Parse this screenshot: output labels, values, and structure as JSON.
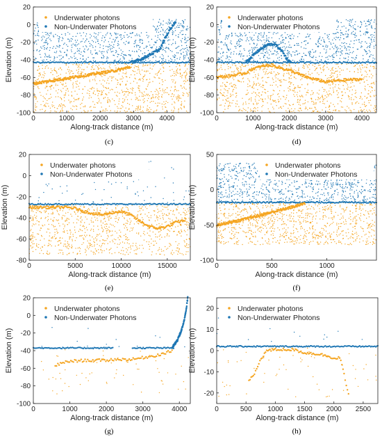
{
  "colors": {
    "underwater": "#f5a623",
    "non_underwater": "#1f77b4",
    "axis": "#222222"
  },
  "chart_data": [
    {
      "panel": "(c)",
      "type": "scatter",
      "xlabel": "Along-track distance (m)",
      "ylabel": "Elevation (m)",
      "xlim": [
        0,
        4700
      ],
      "ylim": [
        -100,
        20
      ],
      "xticks": [
        0,
        1000,
        2000,
        3000,
        4000
      ],
      "yticks": [
        -100,
        -80,
        -60,
        -40,
        -20,
        0,
        20
      ],
      "legend": {
        "position": "top-left",
        "entries": [
          "Underwater photons",
          "Non-Underwater Photons"
        ]
      },
      "surface_level": -43,
      "series": [
        {
          "name": "Underwater photons",
          "noise_band": [
            -100,
            -43
          ],
          "bottom_profile": [
            [
              0,
              -67
            ],
            [
              500,
              -64
            ],
            [
              1000,
              -61
            ],
            [
              1500,
              -58
            ],
            [
              2000,
              -55
            ],
            [
              2500,
              -52
            ],
            [
              2800,
              -49
            ],
            [
              2900,
              -48
            ]
          ]
        },
        {
          "name": "Non-Underwater Photons",
          "noise_band": [
            -43,
            6
          ],
          "bottom_profile": [
            [
              2900,
              -43
            ],
            [
              3200,
              -40
            ],
            [
              3500,
              -34
            ],
            [
              3800,
              -28
            ],
            [
              3950,
              -15
            ],
            [
              4100,
              -5
            ],
            [
              4250,
              3
            ]
          ]
        }
      ]
    },
    {
      "panel": "(d)",
      "type": "scatter",
      "xlabel": "Along-track distance (m)",
      "ylabel": "Elevation (m)",
      "xlim": [
        0,
        4400
      ],
      "ylim": [
        -100,
        20
      ],
      "xticks": [
        0,
        1000,
        2000,
        3000,
        4000
      ],
      "yticks": [
        -100,
        -80,
        -60,
        -40,
        -20,
        0,
        20
      ],
      "legend": {
        "position": "top-left",
        "entries": [
          "Underwater photons",
          "Non-Underwater Photons"
        ]
      },
      "surface_level": -43,
      "series": [
        {
          "name": "Underwater photons",
          "noise_band": [
            -100,
            -43
          ],
          "bottom_profile": [
            [
              0,
              -60
            ],
            [
              400,
              -58
            ],
            [
              800,
              -55
            ],
            [
              1000,
              -50
            ],
            [
              1300,
              -47
            ],
            [
              1500,
              -46
            ],
            [
              2000,
              -52
            ],
            [
              2500,
              -60
            ],
            [
              3000,
              -65
            ],
            [
              3500,
              -63
            ],
            [
              4000,
              -62
            ]
          ]
        },
        {
          "name": "Non-Underwater Photons",
          "noise_band": [
            -43,
            6
          ],
          "bottom_profile": [
            [
              800,
              -43
            ],
            [
              1000,
              -35
            ],
            [
              1200,
              -28
            ],
            [
              1400,
              -23
            ],
            [
              1600,
              -22
            ],
            [
              1800,
              -30
            ],
            [
              1950,
              -40
            ],
            [
              2050,
              -43
            ]
          ]
        }
      ]
    },
    {
      "panel": "(e)",
      "type": "scatter",
      "xlabel": "Along-track distance (m)",
      "ylabel": "Elevation (m)",
      "xlim": [
        0,
        17500
      ],
      "ylim": [
        -80,
        20
      ],
      "xticks": [
        0,
        5000,
        10000,
        15000
      ],
      "yticks": [
        -80,
        -60,
        -40,
        -20,
        0,
        20
      ],
      "legend": {
        "position": "top-left",
        "entries": [
          "Underwater photons",
          "Non-Underwater Photons"
        ]
      },
      "surface_level": -27,
      "series": [
        {
          "name": "Underwater photons",
          "noise_band": [
            -75,
            -27
          ],
          "bottom_profile": [
            [
              0,
              -30
            ],
            [
              2000,
              -30
            ],
            [
              4000,
              -30
            ],
            [
              5000,
              -31
            ],
            [
              6000,
              -34
            ],
            [
              7000,
              -36
            ],
            [
              8000,
              -37
            ],
            [
              9000,
              -35
            ],
            [
              10000,
              -34
            ],
            [
              11000,
              -37
            ],
            [
              12000,
              -43
            ],
            [
              13000,
              -48
            ],
            [
              14000,
              -50
            ],
            [
              15000,
              -48
            ],
            [
              16000,
              -44
            ],
            [
              17000,
              -42
            ]
          ]
        },
        {
          "name": "Non-Underwater Photons",
          "noise_band": [
            -27,
            15
          ],
          "bottom_profile": []
        }
      ]
    },
    {
      "panel": "(f)",
      "type": "scatter",
      "xlabel": "Along-track distance (m)",
      "ylabel": "Elevation (m)",
      "xlim": [
        0,
        1450
      ],
      "ylim": [
        -100,
        50
      ],
      "xticks": [
        0,
        500,
        1000
      ],
      "yticks": [
        -100,
        -50,
        0,
        50
      ],
      "legend": {
        "position": "top-right",
        "entries": [
          "Underwater photons",
          "Non-Underwater Photons"
        ]
      },
      "surface_level": -18,
      "series": [
        {
          "name": "Underwater photons",
          "noise_band": [
            -78,
            -18
          ],
          "bottom_profile": [
            [
              0,
              -50
            ],
            [
              200,
              -44
            ],
            [
              400,
              -36
            ],
            [
              600,
              -28
            ],
            [
              750,
              -22
            ],
            [
              800,
              -19
            ]
          ]
        },
        {
          "name": "Non-Underwater Photons",
          "noise_band": [
            -18,
            38
          ],
          "bottom_profile": []
        }
      ]
    },
    {
      "panel": "(g)",
      "type": "scatter",
      "xlabel": "Along-track distance (m)",
      "ylabel": "Elevation (m)",
      "xlim": [
        0,
        4300
      ],
      "ylim": [
        -100,
        20
      ],
      "xticks": [
        0,
        1000,
        2000,
        3000,
        4000
      ],
      "yticks": [
        -100,
        -80,
        -60,
        -40,
        -20,
        0,
        20
      ],
      "legend": {
        "position": "top-left",
        "entries": [
          "Underwater photons",
          "Non-Underwater Photons"
        ]
      },
      "surface_level": -37,
      "series": [
        {
          "name": "Underwater photons",
          "sparse": true,
          "noise_band": [
            -90,
            -37
          ],
          "bottom_profile": [
            [
              600,
              -57
            ],
            [
              800,
              -54
            ],
            [
              1000,
              -52
            ],
            [
              1500,
              -51
            ],
            [
              2000,
              -51
            ],
            [
              2200,
              -50
            ],
            [
              2700,
              -50
            ],
            [
              3000,
              -48
            ],
            [
              3300,
              -46
            ],
            [
              3600,
              -43
            ],
            [
              3800,
              -40
            ]
          ]
        },
        {
          "name": "Non-Underwater Photons",
          "sparse": true,
          "noise_band": [
            -37,
            0
          ],
          "bottom_profile": [
            [
              3800,
              -37
            ],
            [
              3950,
              -28
            ],
            [
              4050,
              -18
            ],
            [
              4120,
              -8
            ],
            [
              4180,
              5
            ],
            [
              4230,
              20
            ]
          ]
        }
      ]
    },
    {
      "panel": "(h)",
      "type": "scatter",
      "xlabel": "Along-track distance (m)",
      "ylabel": "Elevation (m)",
      "xlim": [
        0,
        2750
      ],
      "ylim": [
        -25,
        25
      ],
      "xticks": [
        0,
        500,
        1000,
        1500,
        2000,
        2500
      ],
      "yticks": [
        -20,
        -10,
        0,
        10,
        20
      ],
      "legend": {
        "position": "top-left",
        "entries": [
          "Underwater photons",
          "Non-Underwater Photons"
        ]
      },
      "surface_level": 2,
      "series": [
        {
          "name": "Underwater photons",
          "sparse": true,
          "noise_band": [
            -22,
            2
          ],
          "bottom_profile": [
            [
              550,
              -14
            ],
            [
              650,
              -11
            ],
            [
              750,
              -4
            ],
            [
              850,
              0
            ],
            [
              1000,
              0.5
            ],
            [
              1300,
              0.5
            ],
            [
              1500,
              -1
            ],
            [
              1700,
              -1.5
            ],
            [
              1900,
              -2.5
            ],
            [
              2050,
              -4
            ],
            [
              2100,
              -3
            ],
            [
              2150,
              -8
            ],
            [
              2200,
              -15
            ],
            [
              2250,
              -21
            ]
          ]
        },
        {
          "name": "Non-Underwater Photons",
          "sparse": true,
          "noise_band": [
            2,
            18
          ],
          "bottom_profile": []
        }
      ]
    }
  ]
}
